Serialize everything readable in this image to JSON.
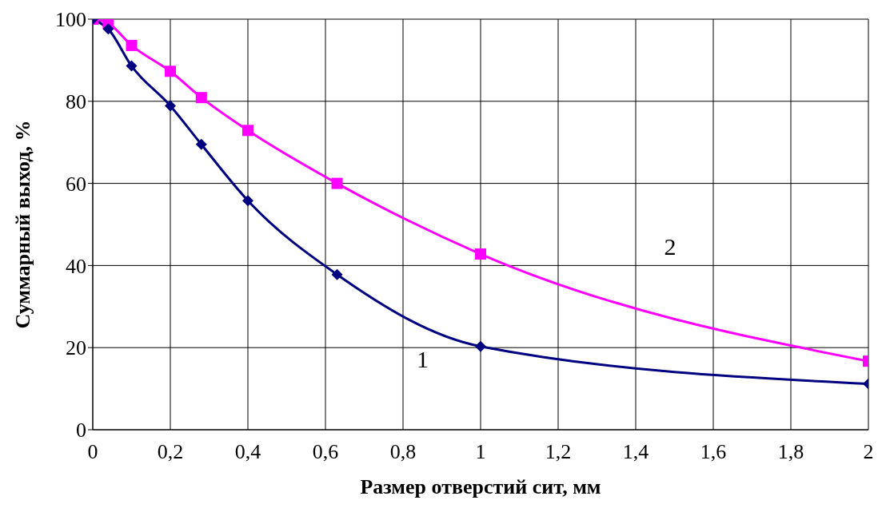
{
  "chart_data": {
    "type": "line",
    "xlabel": "Размер отверстий сит, мм",
    "ylabel": "Суммарный выход, %",
    "xlim": [
      0,
      2
    ],
    "xticks": [
      0,
      {
        "value": 0.2,
        "label": "0,2"
      },
      {
        "value": 0.4,
        "label": "0,4"
      },
      {
        "value": 0.6,
        "label": "0,6"
      },
      {
        "value": 0.8,
        "label": "0,8"
      },
      1,
      {
        "value": 1.2,
        "label": "1,2"
      },
      {
        "value": 1.4,
        "label": "1,4"
      },
      {
        "value": 1.6,
        "label": "1,6"
      },
      {
        "value": 1.8,
        "label": "1,8"
      },
      2
    ],
    "ylim": [
      0,
      100
    ],
    "yticks": [
      0,
      20,
      40,
      60,
      80,
      100
    ],
    "grid": true,
    "x": [
      0,
      0.04,
      0.1,
      0.2,
      0.28,
      0.4,
      0.63,
      1,
      2
    ],
    "series": [
      {
        "name": "1",
        "color": "#000080",
        "marker": "diamond",
        "values": [
          100,
          97.6,
          88.6,
          78.9,
          69.5,
          55.8,
          37.8,
          20.3,
          11.2
        ]
      },
      {
        "name": "2",
        "color": "#ff00ff",
        "marker": "square",
        "values": [
          100,
          99,
          93.6,
          87.3,
          80.9,
          72.9,
          60,
          42.8,
          16.7
        ]
      }
    ]
  }
}
